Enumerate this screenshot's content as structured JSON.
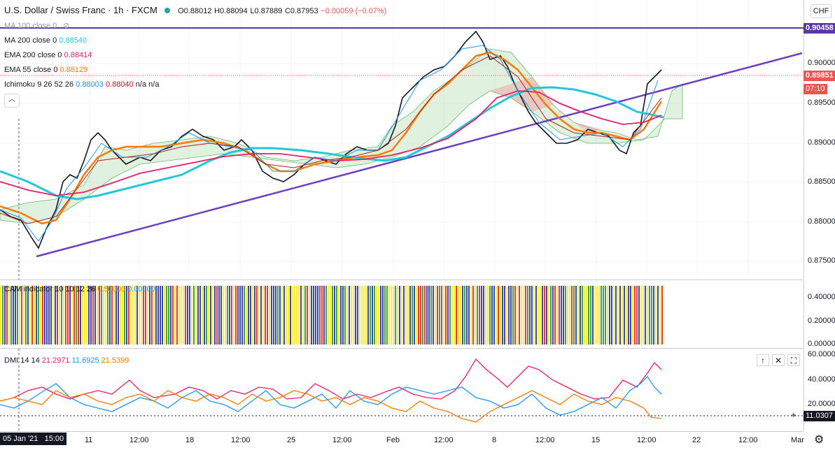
{
  "header": {
    "symbol": "U.S. Dollar / Swiss Franc · 1h · FXCM",
    "o": "O0.88012",
    "h": "H0.88094",
    "l": "L0.87889",
    "c": "C0.87953",
    "change": "−0.00059 (−0.07%)",
    "currency_badge": "CHF"
  },
  "indicators": [
    {
      "name": "MA 100 close 0",
      "value": "",
      "color": "#9598a1"
    },
    {
      "name": "MA 200 close 0",
      "value": "0.88540",
      "color": "#26c6da"
    },
    {
      "name": "EMA 200 close 0",
      "value": "0.88414",
      "color": "#e91e63"
    },
    {
      "name": "EMA 55 close 0",
      "value": "0.88129",
      "color": "#f57c00"
    },
    {
      "name": "Ichimoku 9 26 52 26",
      "value": "0.88003",
      "value2": "0.88040",
      "value3": "n/a n/a",
      "color": "#2196f3",
      "color2": "#b71c1c"
    }
  ],
  "price_axis": {
    "ticks": [
      "0.90000",
      "0.89500",
      "0.89000",
      "0.88500",
      "0.88000",
      "0.87500"
    ],
    "tag_resistance": "0.90458",
    "tag_current": "0.89851",
    "tag_countdown": "07:10",
    "colors": {
      "resistance": "#5b36a8",
      "current": "#ef5350",
      "countdown": "#ef5350"
    }
  },
  "cam": {
    "label": "CAM indicator 10 10 12 26",
    "value1": "0.50000",
    "value2": "0.00000",
    "ticks": [
      "0.40000",
      "0.20000",
      "0.00000"
    ]
  },
  "dmi": {
    "label": "DMI 14 14",
    "adx": "21.2971",
    "plus": "11.6925",
    "minus": "21.5399",
    "ticks": [
      "60.0000",
      "40.0000",
      "20.0000"
    ],
    "tag": "11.0307",
    "colors": {
      "adx": "#e91e63",
      "plus": "#2196f3",
      "minus": "#f57c00"
    }
  },
  "time_axis": {
    "labels": [
      "11",
      "12:00",
      "18",
      "12:00",
      "25",
      "12:00",
      "Feb",
      "12:00",
      "8",
      "12:00",
      "15",
      "12:00",
      "22",
      "12:00",
      "Mar"
    ],
    "cursor_label": "05 Jan '21   15:00"
  },
  "chart_data": {
    "type": "line",
    "series": [
      {
        "name": "EMA 55 close 0",
        "last": 0.88129
      },
      {
        "name": "MA 200 close 0",
        "last": 0.8854
      },
      {
        "name": "EMA 200 close 0",
        "last": 0.88414
      }
    ],
    "ylim": [
      0.874,
      0.905
    ],
    "resistance_level": 0.90458,
    "current_price": 0.89851
  }
}
